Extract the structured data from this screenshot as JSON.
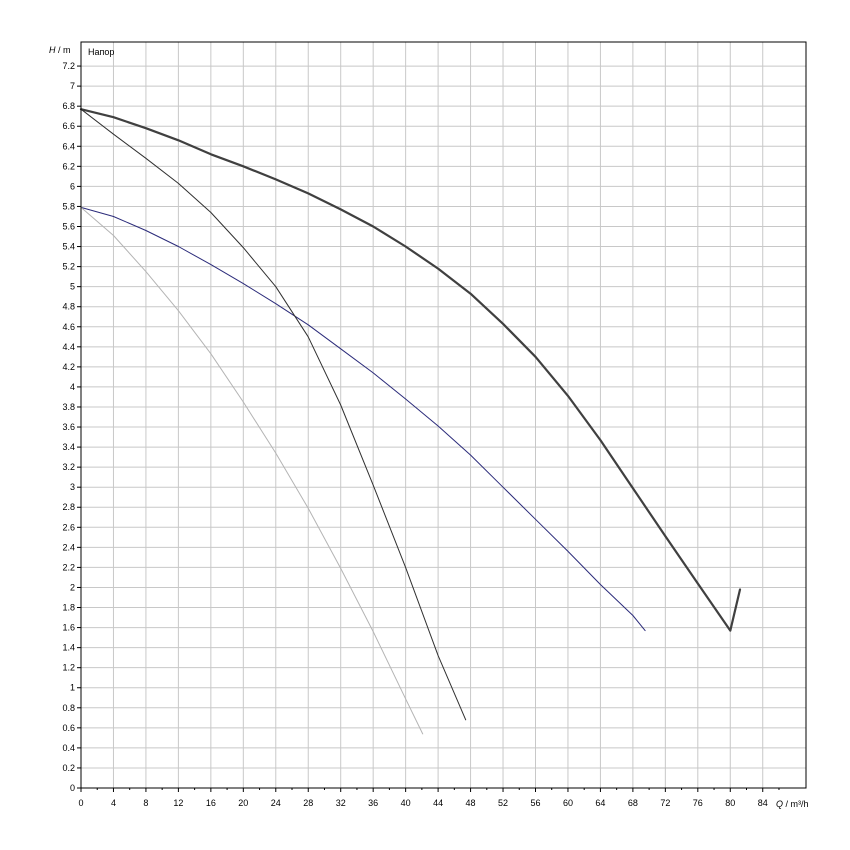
{
  "chart_data": {
    "type": "line",
    "xlabel_var": "Q",
    "xlabel_unit": "m³/h",
    "ylabel_var": "H",
    "ylabel_unit": "m",
    "legend_label": "Напор",
    "legend_position": "top-left",
    "grid": true,
    "xlim": [
      0,
      89.33
    ],
    "ylim": [
      0,
      7.44
    ],
    "x_ticks": [
      0,
      4,
      8,
      12,
      16,
      20,
      24,
      28,
      32,
      36,
      40,
      44,
      48,
      52,
      56,
      60,
      64,
      68,
      72,
      76,
      80,
      84
    ],
    "x_tick_labels": [
      "0",
      "4",
      "8",
      "12",
      "16",
      "20",
      "24",
      "28",
      "32",
      "36",
      "40",
      "44",
      "48",
      "52",
      "56",
      "60",
      "64",
      "68",
      "72",
      "76",
      "80",
      "84"
    ],
    "y_ticks": [
      0,
      0.2,
      0.4,
      0.6,
      0.8,
      1,
      1.2,
      1.4,
      1.6,
      1.8,
      2,
      2.2,
      2.4,
      2.6,
      2.8,
      3,
      3.2,
      3.4,
      3.6,
      3.8,
      4,
      4.2,
      4.4,
      4.6,
      4.8,
      5,
      5.2,
      5.4,
      5.6,
      5.8,
      6,
      6.2,
      6.4,
      6.6,
      6.8,
      7,
      7.2
    ],
    "y_tick_labels": [
      "0",
      "0.2",
      "0.4",
      "0.6",
      "0.8",
      "1",
      "1.2",
      "1.4",
      "1.6",
      "1.8",
      "2",
      "2.2",
      "2.4",
      "2.6",
      "2.8",
      "3",
      "3.2",
      "3.4",
      "3.6",
      "3.8",
      "4",
      "4.2",
      "4.4",
      "4.6",
      "4.8",
      "5",
      "5.2",
      "5.4",
      "5.6",
      "5.8",
      "6",
      "6.2",
      "6.4",
      "6.6",
      "6.8",
      "7",
      "7.2"
    ],
    "series": [
      {
        "color": "#404040",
        "width": 2.2,
        "x": [
          0,
          4,
          8,
          12,
          16,
          20,
          24,
          28,
          32,
          36,
          40,
          44,
          48,
          52,
          56,
          60,
          64,
          68,
          72,
          76,
          80,
          81.2
        ],
        "y": [
          6.77,
          6.69,
          6.58,
          6.46,
          6.32,
          6.2,
          6.07,
          5.93,
          5.77,
          5.6,
          5.4,
          5.18,
          4.93,
          4.63,
          4.3,
          3.91,
          3.47,
          2.99,
          2.51,
          2.04,
          1.57,
          1.98
        ]
      },
      {
        "color": "#2b2b7a",
        "width": 1.0,
        "x": [
          0,
          4,
          8,
          12,
          16,
          20,
          24,
          28,
          32,
          36,
          40,
          44,
          48,
          52,
          56,
          60,
          64,
          68,
          69.5
        ],
        "y": [
          5.79,
          5.7,
          5.56,
          5.4,
          5.22,
          5.03,
          4.83,
          4.62,
          4.38,
          4.14,
          3.88,
          3.61,
          3.32,
          3.0,
          2.68,
          2.36,
          2.03,
          1.72,
          1.57
        ]
      },
      {
        "color": "#303030",
        "width": 1.0,
        "x": [
          0,
          4,
          8,
          12,
          16,
          20,
          24,
          28,
          32,
          36,
          40,
          44,
          47.4
        ],
        "y": [
          6.77,
          6.52,
          6.28,
          6.03,
          5.74,
          5.39,
          5.0,
          4.5,
          3.82,
          3.02,
          2.2,
          1.32,
          0.68
        ]
      },
      {
        "color": "#b4b4b4",
        "width": 1.0,
        "x": [
          0,
          4,
          8,
          12,
          16,
          20,
          24,
          28,
          32,
          36,
          40,
          42.1
        ],
        "y": [
          5.79,
          5.51,
          5.15,
          4.76,
          4.33,
          3.85,
          3.34,
          2.79,
          2.19,
          1.56,
          0.89,
          0.54
        ]
      }
    ]
  }
}
